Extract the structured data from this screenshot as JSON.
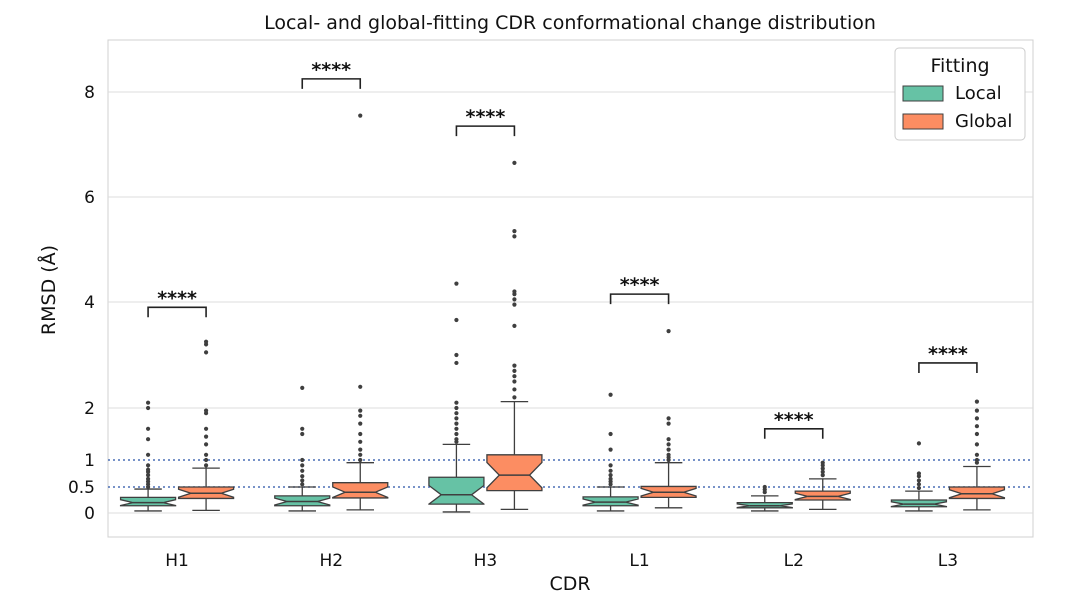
{
  "chart_data": {
    "type": "box",
    "title": "Local- and global-fitting CDR conformational change distribution",
    "xlabel": "CDR",
    "ylabel": "RMSD (Å)",
    "categories": [
      "H1",
      "H2",
      "H3",
      "L1",
      "L2",
      "L3"
    ],
    "y_ticks": [
      {
        "label": "0",
        "value": 0
      },
      {
        "label": "0.5",
        "value": 0.5
      },
      {
        "label": "1",
        "value": 1
      },
      {
        "label": "2",
        "value": 2
      },
      {
        "label": "4",
        "value": 4
      },
      {
        "label": "6",
        "value": 6
      },
      {
        "label": "8",
        "value": 8
      }
    ],
    "ylim": [
      -0.45,
      9.0
    ],
    "reference_lines": [
      0.5,
      1.0
    ],
    "legend": {
      "title": "Fitting",
      "position": "top-right",
      "entries": [
        {
          "name": "Local",
          "color": "#66c2a5"
        },
        {
          "name": "Global",
          "color": "#fc8d62"
        }
      ]
    },
    "series": [
      {
        "name": "Local",
        "color": "#66c2a5",
        "boxes": [
          {
            "whisker_low": 0.04,
            "q1": 0.14,
            "median": 0.2,
            "q3": 0.3,
            "whisker_high": 0.46,
            "outliers": [
              0.5,
              0.55,
              0.6,
              0.65,
              0.72,
              0.78,
              0.82,
              0.9,
              1.1,
              1.4,
              1.6,
              2.0,
              2.1
            ]
          },
          {
            "whisker_low": 0.04,
            "q1": 0.14,
            "median": 0.22,
            "q3": 0.33,
            "whisker_high": 0.5,
            "outliers": [
              0.55,
              0.62,
              0.7,
              0.8,
              0.9,
              1.0,
              1.5,
              1.6,
              2.38
            ]
          },
          {
            "whisker_low": 0.02,
            "q1": 0.17,
            "median": 0.35,
            "q3": 0.68,
            "whisker_high": 1.3,
            "outliers": [
              1.35,
              1.4,
              1.5,
              1.6,
              1.7,
              1.8,
              1.9,
              2.0,
              2.1,
              2.85,
              3.0,
              3.66,
              4.35
            ]
          },
          {
            "whisker_low": 0.04,
            "q1": 0.14,
            "median": 0.21,
            "q3": 0.31,
            "whisker_high": 0.5,
            "outliers": [
              0.55,
              0.6,
              0.65,
              0.72,
              0.8,
              0.9,
              1.2,
              1.5,
              2.25
            ]
          },
          {
            "whisker_low": 0.04,
            "q1": 0.1,
            "median": 0.14,
            "q3": 0.2,
            "whisker_high": 0.33,
            "outliers": [
              0.4,
              0.45,
              0.5
            ]
          },
          {
            "whisker_low": 0.04,
            "q1": 0.12,
            "median": 0.17,
            "q3": 0.25,
            "whisker_high": 0.42,
            "outliers": [
              0.48,
              0.55,
              0.62,
              0.7,
              0.75,
              1.32
            ]
          }
        ]
      },
      {
        "name": "Global",
        "color": "#fc8d62",
        "boxes": [
          {
            "whisker_low": 0.05,
            "q1": 0.28,
            "median": 0.38,
            "q3": 0.5,
            "whisker_high": 0.85,
            "outliers": [
              0.9,
              1.0,
              1.1,
              1.3,
              1.45,
              1.6,
              1.9,
              1.95,
              3.05,
              3.2,
              3.25
            ]
          },
          {
            "whisker_low": 0.06,
            "q1": 0.29,
            "median": 0.4,
            "q3": 0.58,
            "whisker_high": 0.95,
            "outliers": [
              1.0,
              1.1,
              1.2,
              1.35,
              1.5,
              1.7,
              1.85,
              1.95,
              2.4,
              7.55
            ]
          },
          {
            "whisker_low": 0.07,
            "q1": 0.43,
            "median": 0.72,
            "q3": 1.1,
            "whisker_high": 2.12,
            "outliers": [
              2.2,
              2.35,
              2.5,
              2.6,
              2.7,
              2.8,
              3.55,
              3.95,
              4.05,
              4.15,
              4.2,
              5.25,
              5.35,
              6.65
            ]
          },
          {
            "whisker_low": 0.1,
            "q1": 0.3,
            "median": 0.4,
            "q3": 0.51,
            "whisker_high": 0.95,
            "outliers": [
              1.0,
              1.05,
              1.1,
              1.2,
              1.3,
              1.4,
              1.7,
              1.8,
              3.45
            ]
          },
          {
            "whisker_low": 0.07,
            "q1": 0.25,
            "median": 0.32,
            "q3": 0.42,
            "whisker_high": 0.65,
            "outliers": [
              0.72,
              0.78,
              0.84,
              0.9,
              0.95
            ]
          },
          {
            "whisker_low": 0.06,
            "q1": 0.28,
            "median": 0.37,
            "q3": 0.5,
            "whisker_high": 0.88,
            "outliers": [
              0.95,
              1.0,
              1.1,
              1.3,
              1.5,
              1.65,
              1.8,
              1.95,
              2.12
            ]
          }
        ]
      }
    ],
    "significance": [
      {
        "category": "H1",
        "label": "****",
        "bracket_y": 3.9
      },
      {
        "category": "H2",
        "label": "****",
        "bracket_y": 8.25
      },
      {
        "category": "H3",
        "label": "****",
        "bracket_y": 7.35
      },
      {
        "category": "L1",
        "label": "****",
        "bracket_y": 4.15
      },
      {
        "category": "L2",
        "label": "****",
        "bracket_y": 1.6
      },
      {
        "category": "L3",
        "label": "****",
        "bracket_y": 2.85
      }
    ]
  }
}
